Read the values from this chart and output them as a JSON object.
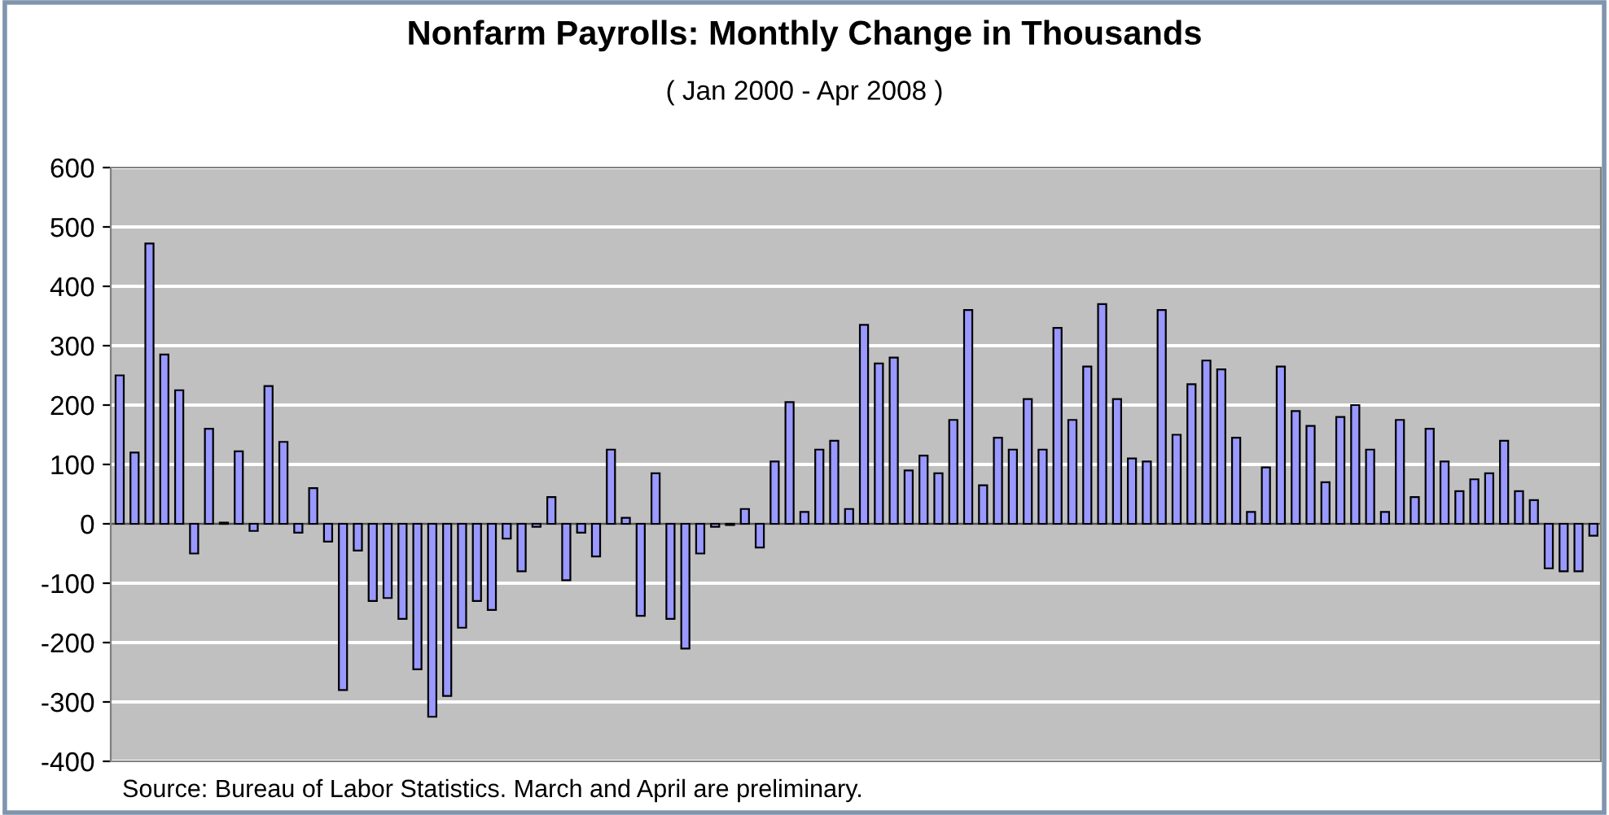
{
  "chart_data": {
    "type": "bar",
    "title": "Nonfarm Payrolls: Monthly Change in Thousands",
    "subtitle": "( Jan 2000 - Apr 2008 )",
    "categories": [
      null,
      null,
      null,
      null,
      null,
      null,
      null,
      null,
      null,
      null,
      null,
      null,
      null,
      null,
      null,
      null,
      null,
      null,
      null,
      null,
      null,
      null,
      null,
      null,
      null,
      null,
      null,
      null,
      null,
      null,
      null,
      null,
      null,
      null,
      null,
      null,
      null,
      null,
      null,
      null,
      null,
      null,
      null,
      null,
      null,
      null,
      null,
      null,
      null,
      null,
      null,
      null,
      null,
      null,
      null,
      null,
      null,
      null,
      null,
      null,
      null,
      null,
      null,
      null,
      null,
      null,
      null,
      null,
      null,
      null,
      null,
      null,
      null,
      null,
      null,
      null,
      null,
      null,
      null,
      null,
      null,
      null,
      null,
      null,
      null,
      null,
      null,
      null,
      null,
      null,
      null,
      null,
      null,
      null,
      null,
      null,
      null,
      null,
      null,
      null
    ],
    "values": [
      250,
      120,
      472,
      285,
      225,
      -50,
      160,
      2,
      122,
      -12,
      232,
      138,
      -15,
      60,
      -30,
      -280,
      -45,
      -130,
      -125,
      -160,
      -245,
      -325,
      -290,
      -175,
      -130,
      -145,
      -25,
      -80,
      -5,
      45,
      -95,
      -15,
      -55,
      125,
      10,
      -155,
      85,
      -160,
      -210,
      -50,
      -5,
      -2,
      25,
      -40,
      105,
      205,
      20,
      125,
      140,
      25,
      335,
      270,
      280,
      90,
      115,
      85,
      175,
      360,
      65,
      145,
      125,
      210,
      125,
      330,
      175,
      265,
      370,
      210,
      110,
      105,
      360,
      150,
      235,
      275,
      260,
      145,
      20,
      95,
      265,
      190,
      165,
      70,
      180,
      200,
      125,
      20,
      175,
      45,
      160,
      105,
      55,
      75,
      85,
      140,
      55,
      40,
      -75,
      -80,
      -80,
      -20
    ],
    "color": "#9999ff",
    "ylim": [
      -400,
      600
    ],
    "yticks": [
      -400,
      -300,
      -200,
      -100,
      0,
      100,
      200,
      300,
      400,
      500,
      600
    ],
    "grid": "y",
    "annotations": [
      "Source: Bureau of Labor Statistics. March and April are preliminary."
    ]
  }
}
